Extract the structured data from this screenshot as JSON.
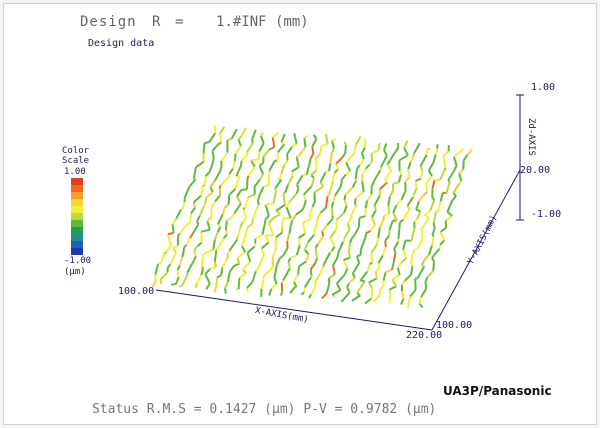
{
  "header": {
    "label": "Design",
    "symbol": "R",
    "equals": "=",
    "value": "1.#INF (mm)",
    "subtitle": "Design data"
  },
  "color_scale": {
    "title_line1": "Color",
    "title_line2": "Scale",
    "max": "1.00",
    "min": "-1.00",
    "unit": "(μm)",
    "colors": [
      "#e23c1e",
      "#f06a1e",
      "#f6a02a",
      "#f3d534",
      "#f1ee3c",
      "#bcd83a",
      "#5fba3c",
      "#1fa24a",
      "#1c8f8f",
      "#1f5fc0",
      "#1d3aa8"
    ]
  },
  "axes": {
    "x_label": "X-AXIS(mm)",
    "y_label": "Y-AXIS(mm)",
    "z_label": "Zd-AXIS",
    "x_tick_min": "100.00",
    "x_tick_max": "220.00",
    "y_tick_min": "100.00",
    "y_tick_max": "20.00",
    "z_tick_max": "1.00",
    "z_tick_min": "-1.00"
  },
  "chart_data": {
    "type": "line",
    "title": "Design R = 1.#INF (mm)",
    "subtitle": "Design data",
    "xlabel": "X-AXIS(mm)",
    "ylabel": "Y-AXIS(mm)",
    "zlabel": "Zd-AXIS",
    "xlim": [
      100,
      220
    ],
    "ylim": [
      20,
      100
    ],
    "zlim": [
      -1,
      1
    ],
    "rms_um": 0.1427,
    "pv_um": 0.9782
  },
  "footer": {
    "brand": "UA3P/Panasonic",
    "status": "Status  R.M.S = 0.1427 (μm)  P-V = 0.9782 (μm)"
  }
}
